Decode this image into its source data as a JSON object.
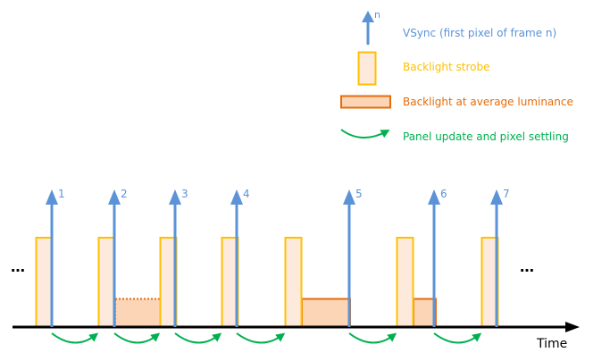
{
  "colors": {
    "vsync": "#5b93d6",
    "strobe_stroke": "#ffc000",
    "strobe_fill": "#fdeadc",
    "average_stroke": "#e46c0a",
    "average_fill": "#fbd5b5",
    "panel_update": "#00b050",
    "axis": "#000000"
  },
  "legend": {
    "vsync_symbol": "n",
    "vsync_label": "VSync (first pixel of frame n)",
    "strobe_label": "Backlight strobe",
    "average_label": "Backlight at average luminance",
    "panel_update_label": "Panel update and pixel settling"
  },
  "timeline": {
    "frames": [
      "1",
      "2",
      "3",
      "4",
      "5",
      "6",
      "7"
    ],
    "ellipsis_start": "…",
    "ellipsis_end": "…",
    "axis_label": "Time"
  }
}
